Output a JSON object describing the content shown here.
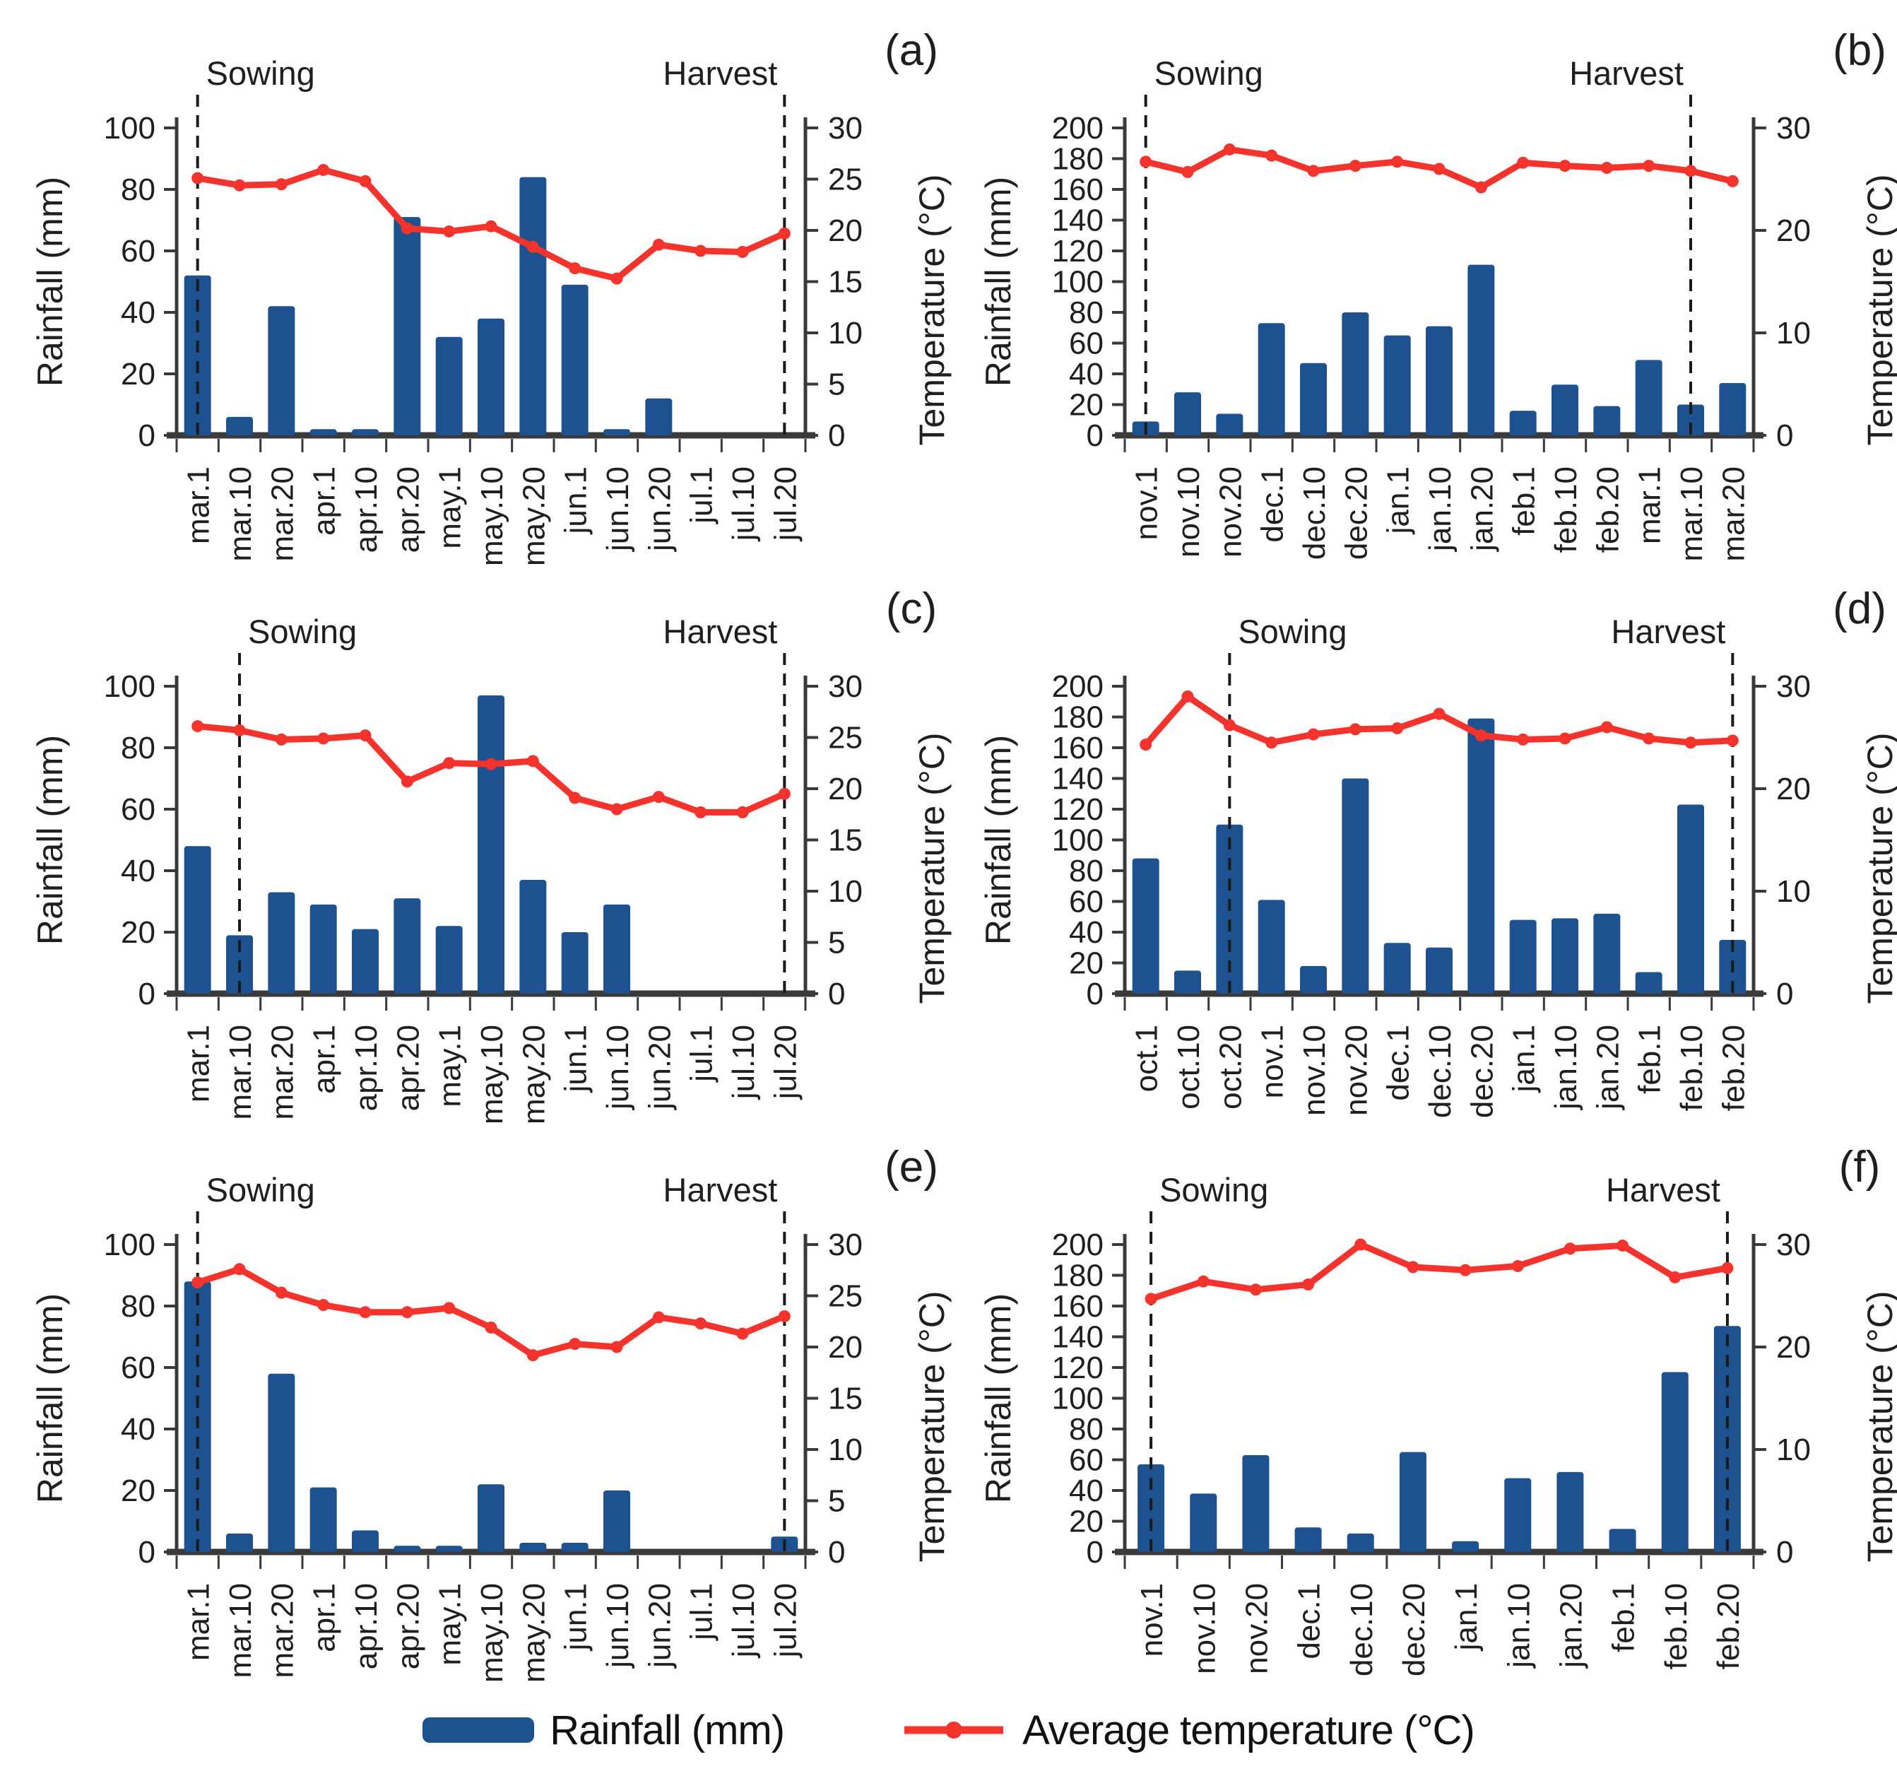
{
  "figure": {
    "legend": {
      "rainfall_label": "Rainfall (mm)",
      "temperature_label": "Average temperature (°C)"
    },
    "axes": {
      "left_title": "Rainfall (mm)",
      "right_title": "Temperature (°C)"
    },
    "annotations": {
      "sowing": "Sowing",
      "harvest": "Harvest"
    },
    "colors": {
      "bar": "#1d5190",
      "line": "#f5332d",
      "axis": "#3a3a3a",
      "dashed": "#1a1a1a",
      "text": "#1f1f1f"
    }
  },
  "chart_data": [
    {
      "id": "a",
      "panel_label": "(a)",
      "type": "bar+line",
      "categories": [
        "mar.1",
        "mar.10",
        "mar.20",
        "apr.1",
        "apr.10",
        "apr.20",
        "may.1",
        "may.10",
        "may.20",
        "jun.1",
        "jun.10",
        "jun.20",
        "jul.1",
        "jul.10",
        "jul.20"
      ],
      "series": [
        {
          "name": "Rainfall (mm)",
          "values": [
            52,
            6,
            42,
            2,
            2,
            71,
            32,
            38,
            84,
            49,
            2,
            12,
            0,
            0,
            0
          ]
        },
        {
          "name": "Average temperature (°C)",
          "values": [
            25.1,
            24.4,
            24.5,
            25.9,
            24.8,
            20.2,
            19.9,
            20.4,
            18.4,
            16.3,
            15.3,
            18.6,
            18.0,
            17.9,
            19.7
          ]
        }
      ],
      "ylim_left": [
        0,
        100
      ],
      "ylim_right": [
        0,
        30
      ],
      "left_ticks": [
        0,
        20,
        40,
        60,
        80,
        100
      ],
      "right_ticks": [
        0,
        5,
        10,
        15,
        20,
        25,
        30
      ],
      "sowing_index": 0,
      "harvest_index": 14
    },
    {
      "id": "b",
      "panel_label": "(b)",
      "type": "bar+line",
      "categories": [
        "nov.1",
        "nov.10",
        "nov.20",
        "dec.1",
        "dec.10",
        "dec.20",
        "jan.1",
        "jan.10",
        "jan.20",
        "feb.1",
        "feb.10",
        "feb.20",
        "mar.1",
        "mar.10",
        "mar.20"
      ],
      "series": [
        {
          "name": "Rainfall (mm)",
          "values": [
            9,
            28,
            14,
            73,
            47,
            80,
            65,
            71,
            111,
            16,
            33,
            19,
            49,
            20,
            34
          ]
        },
        {
          "name": "Average temperature (°C)",
          "values": [
            26.7,
            25.7,
            27.9,
            27.3,
            25.8,
            26.3,
            26.7,
            26.0,
            24.2,
            26.6,
            26.3,
            26.1,
            26.3,
            25.8,
            24.8
          ]
        }
      ],
      "ylim_left": [
        0,
        200
      ],
      "ylim_right": [
        0,
        30
      ],
      "left_ticks": [
        0,
        20,
        40,
        60,
        80,
        100,
        120,
        140,
        160,
        180,
        200
      ],
      "right_ticks": [
        0,
        10,
        20,
        30
      ],
      "sowing_index": 0,
      "harvest_index": 13
    },
    {
      "id": "c",
      "panel_label": "(c)",
      "type": "bar+line",
      "categories": [
        "mar.1",
        "mar.10",
        "mar.20",
        "apr.1",
        "apr.10",
        "apr.20",
        "may.1",
        "may.10",
        "may.20",
        "jun.1",
        "jun.10",
        "jun.20",
        "jul.1",
        "jul.10",
        "jul.20"
      ],
      "series": [
        {
          "name": "Rainfall (mm)",
          "values": [
            48,
            19,
            33,
            29,
            21,
            31,
            22,
            97,
            37,
            20,
            29,
            0,
            0,
            0,
            0
          ]
        },
        {
          "name": "Average temperature (°C)",
          "values": [
            26.1,
            25.7,
            24.8,
            24.9,
            25.2,
            20.7,
            22.5,
            22.4,
            22.7,
            19.1,
            18.0,
            19.2,
            17.7,
            17.7,
            19.5
          ]
        }
      ],
      "ylim_left": [
        0,
        100
      ],
      "ylim_right": [
        0,
        30
      ],
      "left_ticks": [
        0,
        20,
        40,
        60,
        80,
        100
      ],
      "right_ticks": [
        0,
        5,
        10,
        15,
        20,
        25,
        30
      ],
      "sowing_index": 1,
      "harvest_index": 14
    },
    {
      "id": "d",
      "panel_label": "(d)",
      "type": "bar+line",
      "categories": [
        "oct.1",
        "oct.10",
        "oct.20",
        "nov.1",
        "nov.10",
        "nov.20",
        "dec.1",
        "dec.10",
        "dec.20",
        "jan.1",
        "jan.10",
        "jan.20",
        "feb.1",
        "feb.10",
        "feb.20"
      ],
      "series": [
        {
          "name": "Rainfall (mm)",
          "values": [
            88,
            15,
            110,
            61,
            18,
            140,
            33,
            30,
            179,
            48,
            49,
            52,
            14,
            123,
            35
          ]
        },
        {
          "name": "Average temperature (°C)",
          "values": [
            24.3,
            29.0,
            26.2,
            24.5,
            25.3,
            25.8,
            25.9,
            27.3,
            25.2,
            24.8,
            24.9,
            26.0,
            24.9,
            24.5,
            24.7
          ]
        }
      ],
      "ylim_left": [
        0,
        200
      ],
      "ylim_right": [
        0,
        30
      ],
      "left_ticks": [
        0,
        20,
        40,
        60,
        80,
        100,
        120,
        140,
        160,
        180,
        200
      ],
      "right_ticks": [
        0,
        10,
        20,
        30
      ],
      "sowing_index": 2,
      "harvest_index": 14
    },
    {
      "id": "e",
      "panel_label": "(e)",
      "type": "bar+line",
      "categories": [
        "mar.1",
        "mar.10",
        "mar.20",
        "apr.1",
        "apr.10",
        "apr.20",
        "may.1",
        "may.10",
        "may.20",
        "jun.1",
        "jun.10",
        "jun.20",
        "jul.1",
        "jul.10",
        "jul.20"
      ],
      "series": [
        {
          "name": "Rainfall (mm)",
          "values": [
            88,
            6,
            58,
            21,
            7,
            2,
            2,
            22,
            3,
            3,
            20,
            0,
            0,
            0,
            5
          ]
        },
        {
          "name": "Average temperature (°C)",
          "values": [
            26.3,
            27.6,
            25.3,
            24.1,
            23.4,
            23.4,
            23.8,
            21.9,
            19.2,
            20.3,
            20.0,
            22.9,
            22.3,
            21.3,
            23.0
          ]
        }
      ],
      "ylim_left": [
        0,
        100
      ],
      "ylim_right": [
        0,
        30
      ],
      "left_ticks": [
        0,
        20,
        40,
        60,
        80,
        100
      ],
      "right_ticks": [
        0,
        5,
        10,
        15,
        20,
        25,
        30
      ],
      "sowing_index": 0,
      "harvest_index": 14
    },
    {
      "id": "f",
      "panel_label": "(f)",
      "type": "bar+line",
      "categories": [
        "nov.1",
        "nov.10",
        "nov.20",
        "dec.1",
        "dec.10",
        "dec.20",
        "jan.1",
        "jan.10",
        "jan.20",
        "feb.1",
        "feb.10",
        "feb.20"
      ],
      "series": [
        {
          "name": "Rainfall (mm)",
          "values": [
            57,
            38,
            63,
            16,
            12,
            65,
            7,
            48,
            52,
            15,
            117,
            147
          ]
        },
        {
          "name": "Average temperature (°C)",
          "values": [
            24.7,
            26.4,
            25.6,
            26.1,
            30.0,
            27.8,
            27.5,
            27.9,
            29.6,
            29.9,
            26.8,
            27.7
          ]
        }
      ],
      "ylim_left": [
        0,
        200
      ],
      "ylim_right": [
        0,
        30
      ],
      "left_ticks": [
        0,
        20,
        40,
        60,
        80,
        100,
        120,
        140,
        160,
        180,
        200
      ],
      "right_ticks": [
        0,
        10,
        20,
        30
      ],
      "sowing_index": 0,
      "harvest_index": 11
    }
  ]
}
